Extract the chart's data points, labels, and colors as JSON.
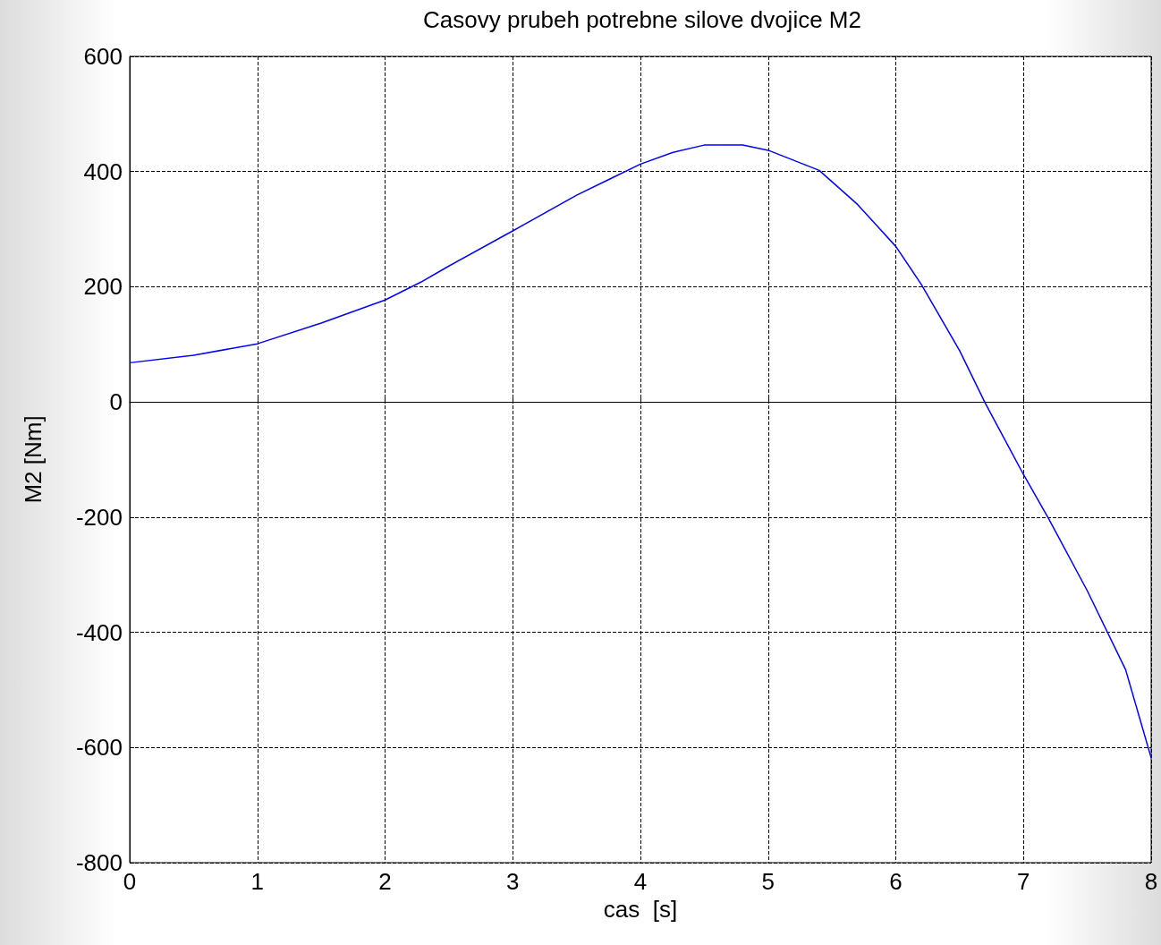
{
  "chart_data": {
    "type": "line",
    "title": "Casovy prubeh potrebne silove dvojice M2",
    "xlabel": "cas  [s]",
    "ylabel": "M2 [Nm]",
    "x": [
      0,
      0.5,
      1,
      1.5,
      2,
      2.28,
      2.5,
      3,
      3.5,
      3.75,
      4,
      4.25,
      4.5,
      4.8,
      5,
      5.4,
      5.7,
      6,
      6.2,
      6.5,
      6.7,
      7,
      7.2,
      7.5,
      7.8,
      8
    ],
    "series": [
      {
        "color": "#0000ff",
        "values": [
          68,
          81,
          101,
          137,
          177,
          208,
          236,
          297,
          359,
          386,
          413,
          433,
          446,
          446,
          437,
          402,
          343,
          270,
          204,
          89,
          -2,
          -126,
          -204,
          -328,
          -465,
          -618
        ]
      }
    ],
    "xlim": [
      0,
      8
    ],
    "xticks": [
      0,
      1,
      2,
      3,
      4,
      5,
      6,
      7,
      8
    ],
    "ylim": [
      -800,
      600
    ],
    "yticks": [
      -800,
      -600,
      -400,
      -200,
      0,
      200,
      400,
      600
    ],
    "grid": true,
    "marker": "none",
    "line_style": "solid"
  }
}
